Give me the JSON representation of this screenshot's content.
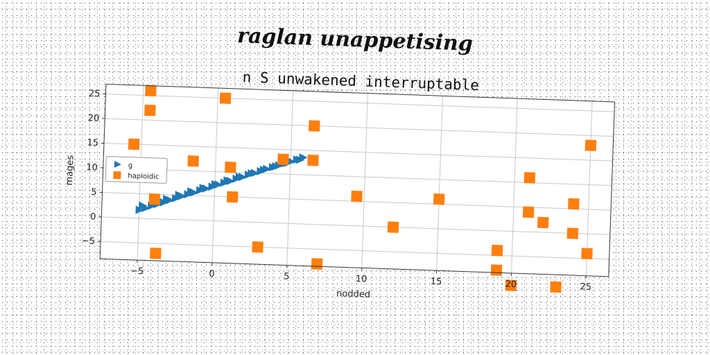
{
  "supertitle": "raglan unappetising",
  "chart_data": {
    "type": "scatter",
    "title": "n S unwakened interruptable",
    "xlabel": "nodded",
    "ylabel": "mages",
    "xlim": [
      -7.5,
      26.5
    ],
    "ylim": [
      -8.5,
      27
    ],
    "xticks": [
      -5,
      0,
      5,
      10,
      15,
      20,
      25
    ],
    "yticks": [
      -5,
      0,
      5,
      10,
      15,
      20,
      25
    ],
    "grid": true,
    "legend_position": "center-left",
    "series": [
      {
        "name": "g",
        "marker": "triangle-right",
        "color": "#1f77b4",
        "x": [
          -5.0,
          -4.6,
          -4.2,
          -3.8,
          -3.4,
          -3.0,
          -2.6,
          -2.2,
          -1.8,
          -1.4,
          -1.0,
          -0.6,
          -0.2,
          0.2,
          0.6,
          1.0,
          1.4,
          1.8,
          2.2,
          2.6,
          3.0,
          3.4,
          3.8,
          4.2,
          4.6,
          5.0,
          5.4,
          5.8,
          -4.8,
          -4.0,
          -3.2,
          -2.4,
          -1.6,
          -0.8,
          0.0,
          0.8,
          1.6,
          2.4,
          3.2,
          4.0,
          4.8,
          5.6
        ],
        "y": [
          1.7,
          2.1,
          2.6,
          3.0,
          3.4,
          3.9,
          4.3,
          4.8,
          5.2,
          5.6,
          6.1,
          6.5,
          6.9,
          7.4,
          7.8,
          8.2,
          8.7,
          9.1,
          9.6,
          10.0,
          10.4,
          10.9,
          11.3,
          11.7,
          12.2,
          12.6,
          13.0,
          13.5,
          2.6,
          3.3,
          4.1,
          5.0,
          5.8,
          6.6,
          7.4,
          8.3,
          9.1,
          9.9,
          10.7,
          11.5,
          12.3,
          13.0
        ]
      },
      {
        "name": "haploidic",
        "marker": "square",
        "color": "#ff7f0e",
        "x": [
          -5.5,
          -4.5,
          -4.5,
          -4.0,
          -3.8,
          -1.5,
          0.5,
          1.0,
          1.2,
          3.0,
          4.5,
          6.5,
          6.5,
          7.0,
          9.5,
          12.0,
          15.0,
          19.0,
          19.0,
          20.0,
          21.0,
          21.0,
          22.0,
          23.0,
          24.0,
          24.0,
          25.0,
          25.0
        ],
        "y": [
          15.0,
          26.0,
          22.0,
          4.0,
          -7.0,
          12.0,
          25.0,
          11.0,
          5.0,
          -5.0,
          13.0,
          20.0,
          13.0,
          -8.0,
          6.0,
          0.0,
          6.0,
          -4.0,
          -8.0,
          -11.0,
          4.0,
          11.0,
          2.0,
          -11.0,
          0.0,
          6.0,
          -4.0,
          18.0
        ]
      }
    ]
  }
}
